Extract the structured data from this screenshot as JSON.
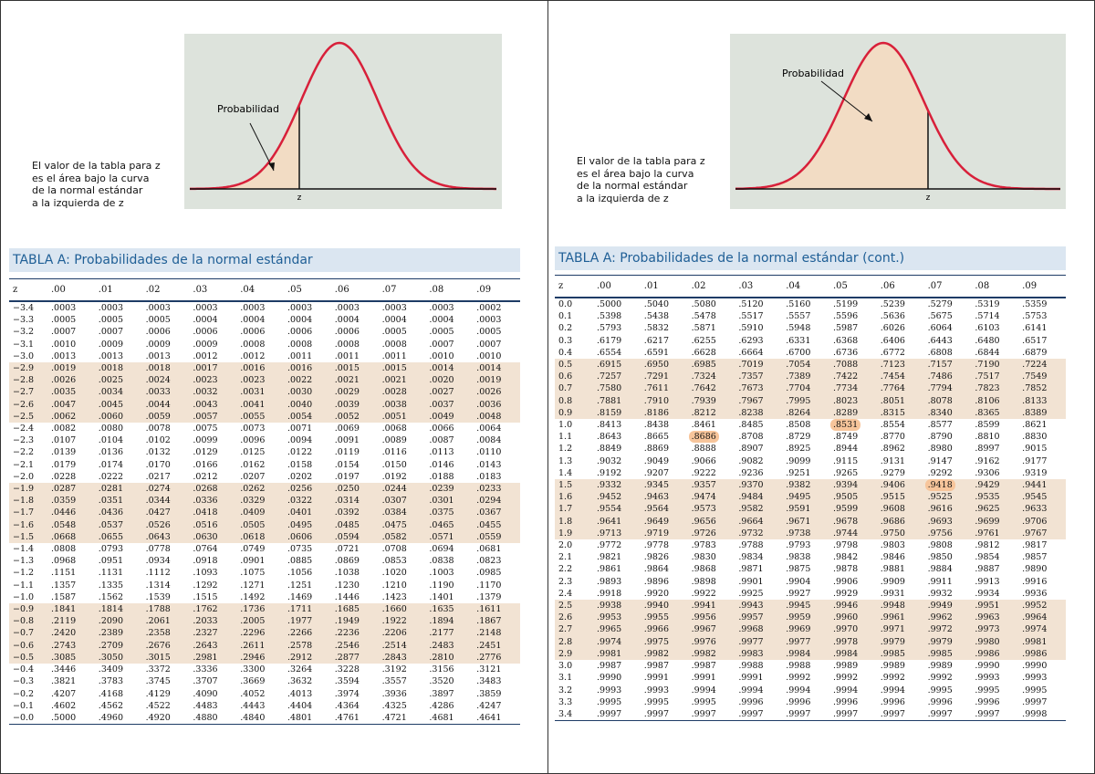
{
  "left": {
    "figure": {
      "label": "Probabilidad",
      "axis_label": "z",
      "caption": [
        "El valor de la tabla para z",
        "es el área bajo la curva",
        "de la normal estándar",
        "a la izquierda de z"
      ]
    },
    "table": {
      "title": "TABLA A:  Probabilidades de la normal estándar",
      "columns": [
        "z",
        ".00",
        ".01",
        ".02",
        ".03",
        ".04",
        ".05",
        ".06",
        ".07",
        ".08",
        ".09"
      ],
      "rows": [
        [
          "−3.4",
          ".0003",
          ".0003",
          ".0003",
          ".0003",
          ".0003",
          ".0003",
          ".0003",
          ".0003",
          ".0003",
          ".0002"
        ],
        [
          "−3.3",
          ".0005",
          ".0005",
          ".0005",
          ".0004",
          ".0004",
          ".0004",
          ".0004",
          ".0004",
          ".0004",
          ".0003"
        ],
        [
          "−3.2",
          ".0007",
          ".0007",
          ".0006",
          ".0006",
          ".0006",
          ".0006",
          ".0006",
          ".0005",
          ".0005",
          ".0005"
        ],
        [
          "−3.1",
          ".0010",
          ".0009",
          ".0009",
          ".0009",
          ".0008",
          ".0008",
          ".0008",
          ".0008",
          ".0007",
          ".0007"
        ],
        [
          "−3.0",
          ".0013",
          ".0013",
          ".0013",
          ".0012",
          ".0012",
          ".0011",
          ".0011",
          ".0011",
          ".0010",
          ".0010"
        ],
        [
          "−2.9",
          ".0019",
          ".0018",
          ".0018",
          ".0017",
          ".0016",
          ".0016",
          ".0015",
          ".0015",
          ".0014",
          ".0014"
        ],
        [
          "−2.8",
          ".0026",
          ".0025",
          ".0024",
          ".0023",
          ".0023",
          ".0022",
          ".0021",
          ".0021",
          ".0020",
          ".0019"
        ],
        [
          "−2.7",
          ".0035",
          ".0034",
          ".0033",
          ".0032",
          ".0031",
          ".0030",
          ".0029",
          ".0028",
          ".0027",
          ".0026"
        ],
        [
          "−2.6",
          ".0047",
          ".0045",
          ".0044",
          ".0043",
          ".0041",
          ".0040",
          ".0039",
          ".0038",
          ".0037",
          ".0036"
        ],
        [
          "−2.5",
          ".0062",
          ".0060",
          ".0059",
          ".0057",
          ".0055",
          ".0054",
          ".0052",
          ".0051",
          ".0049",
          ".0048"
        ],
        [
          "−2.4",
          ".0082",
          ".0080",
          ".0078",
          ".0075",
          ".0073",
          ".0071",
          ".0069",
          ".0068",
          ".0066",
          ".0064"
        ],
        [
          "−2.3",
          ".0107",
          ".0104",
          ".0102",
          ".0099",
          ".0096",
          ".0094",
          ".0091",
          ".0089",
          ".0087",
          ".0084"
        ],
        [
          "−2.2",
          ".0139",
          ".0136",
          ".0132",
          ".0129",
          ".0125",
          ".0122",
          ".0119",
          ".0116",
          ".0113",
          ".0110"
        ],
        [
          "−2.1",
          ".0179",
          ".0174",
          ".0170",
          ".0166",
          ".0162",
          ".0158",
          ".0154",
          ".0150",
          ".0146",
          ".0143"
        ],
        [
          "−2.0",
          ".0228",
          ".0222",
          ".0217",
          ".0212",
          ".0207",
          ".0202",
          ".0197",
          ".0192",
          ".0188",
          ".0183"
        ],
        [
          "−1.9",
          ".0287",
          ".0281",
          ".0274",
          ".0268",
          ".0262",
          ".0256",
          ".0250",
          ".0244",
          ".0239",
          ".0233"
        ],
        [
          "−1.8",
          ".0359",
          ".0351",
          ".0344",
          ".0336",
          ".0329",
          ".0322",
          ".0314",
          ".0307",
          ".0301",
          ".0294"
        ],
        [
          "−1.7",
          ".0446",
          ".0436",
          ".0427",
          ".0418",
          ".0409",
          ".0401",
          ".0392",
          ".0384",
          ".0375",
          ".0367"
        ],
        [
          "−1.6",
          ".0548",
          ".0537",
          ".0526",
          ".0516",
          ".0505",
          ".0495",
          ".0485",
          ".0475",
          ".0465",
          ".0455"
        ],
        [
          "−1.5",
          ".0668",
          ".0655",
          ".0643",
          ".0630",
          ".0618",
          ".0606",
          ".0594",
          ".0582",
          ".0571",
          ".0559"
        ],
        [
          "−1.4",
          ".0808",
          ".0793",
          ".0778",
          ".0764",
          ".0749",
          ".0735",
          ".0721",
          ".0708",
          ".0694",
          ".0681"
        ],
        [
          "−1.3",
          ".0968",
          ".0951",
          ".0934",
          ".0918",
          ".0901",
          ".0885",
          ".0869",
          ".0853",
          ".0838",
          ".0823"
        ],
        [
          "−1.2",
          ".1151",
          ".1131",
          ".1112",
          ".1093",
          ".1075",
          ".1056",
          ".1038",
          ".1020",
          ".1003",
          ".0985"
        ],
        [
          "−1.1",
          ".1357",
          ".1335",
          ".1314",
          ".1292",
          ".1271",
          ".1251",
          ".1230",
          ".1210",
          ".1190",
          ".1170"
        ],
        [
          "−1.0",
          ".1587",
          ".1562",
          ".1539",
          ".1515",
          ".1492",
          ".1469",
          ".1446",
          ".1423",
          ".1401",
          ".1379"
        ],
        [
          "−0.9",
          ".1841",
          ".1814",
          ".1788",
          ".1762",
          ".1736",
          ".1711",
          ".1685",
          ".1660",
          ".1635",
          ".1611"
        ],
        [
          "−0.8",
          ".2119",
          ".2090",
          ".2061",
          ".2033",
          ".2005",
          ".1977",
          ".1949",
          ".1922",
          ".1894",
          ".1867"
        ],
        [
          "−0.7",
          ".2420",
          ".2389",
          ".2358",
          ".2327",
          ".2296",
          ".2266",
          ".2236",
          ".2206",
          ".2177",
          ".2148"
        ],
        [
          "−0.6",
          ".2743",
          ".2709",
          ".2676",
          ".2643",
          ".2611",
          ".2578",
          ".2546",
          ".2514",
          ".2483",
          ".2451"
        ],
        [
          "−0.5",
          ".3085",
          ".3050",
          ".3015",
          ".2981",
          ".2946",
          ".2912",
          ".2877",
          ".2843",
          ".2810",
          ".2776"
        ],
        [
          "−0.4",
          ".3446",
          ".3409",
          ".3372",
          ".3336",
          ".3300",
          ".3264",
          ".3228",
          ".3192",
          ".3156",
          ".3121"
        ],
        [
          "−0.3",
          ".3821",
          ".3783",
          ".3745",
          ".3707",
          ".3669",
          ".3632",
          ".3594",
          ".3557",
          ".3520",
          ".3483"
        ],
        [
          "−0.2",
          ".4207",
          ".4168",
          ".4129",
          ".4090",
          ".4052",
          ".4013",
          ".3974",
          ".3936",
          ".3897",
          ".3859"
        ],
        [
          "−0.1",
          ".4602",
          ".4562",
          ".4522",
          ".4483",
          ".4443",
          ".4404",
          ".4364",
          ".4325",
          ".4286",
          ".4247"
        ],
        [
          "−0.0",
          ".5000",
          ".4960",
          ".4920",
          ".4880",
          ".4840",
          ".4801",
          ".4761",
          ".4721",
          ".4681",
          ".4641"
        ]
      ]
    }
  },
  "right": {
    "figure": {
      "label": "Probabilidad",
      "axis_label": "z",
      "caption": [
        "El valor de la tabla para z",
        "es el área bajo la curva",
        "de la normal estándar",
        "a la izquierda de z"
      ]
    },
    "table": {
      "title": "TABLA A: Probabilidades de la normal estándar (cont.)",
      "columns": [
        "z",
        ".00",
        ".01",
        ".02",
        ".03",
        ".04",
        ".05",
        ".06",
        ".07",
        ".08",
        ".09"
      ],
      "rows": [
        [
          "0.0",
          ".5000",
          ".5040",
          ".5080",
          ".5120",
          ".5160",
          ".5199",
          ".5239",
          ".5279",
          ".5319",
          ".5359"
        ],
        [
          "0.1",
          ".5398",
          ".5438",
          ".5478",
          ".5517",
          ".5557",
          ".5596",
          ".5636",
          ".5675",
          ".5714",
          ".5753"
        ],
        [
          "0.2",
          ".5793",
          ".5832",
          ".5871",
          ".5910",
          ".5948",
          ".5987",
          ".6026",
          ".6064",
          ".6103",
          ".6141"
        ],
        [
          "0.3",
          ".6179",
          ".6217",
          ".6255",
          ".6293",
          ".6331",
          ".6368",
          ".6406",
          ".6443",
          ".6480",
          ".6517"
        ],
        [
          "0.4",
          ".6554",
          ".6591",
          ".6628",
          ".6664",
          ".6700",
          ".6736",
          ".6772",
          ".6808",
          ".6844",
          ".6879"
        ],
        [
          "0.5",
          ".6915",
          ".6950",
          ".6985",
          ".7019",
          ".7054",
          ".7088",
          ".7123",
          ".7157",
          ".7190",
          ".7224"
        ],
        [
          "0.6",
          ".7257",
          ".7291",
          ".7324",
          ".7357",
          ".7389",
          ".7422",
          ".7454",
          ".7486",
          ".7517",
          ".7549"
        ],
        [
          "0.7",
          ".7580",
          ".7611",
          ".7642",
          ".7673",
          ".7704",
          ".7734",
          ".7764",
          ".7794",
          ".7823",
          ".7852"
        ],
        [
          "0.8",
          ".7881",
          ".7910",
          ".7939",
          ".7967",
          ".7995",
          ".8023",
          ".8051",
          ".8078",
          ".8106",
          ".8133"
        ],
        [
          "0.9",
          ".8159",
          ".8186",
          ".8212",
          ".8238",
          ".8264",
          ".8289",
          ".8315",
          ".8340",
          ".8365",
          ".8389"
        ],
        [
          "1.0",
          ".8413",
          ".8438",
          ".8461",
          ".8485",
          ".8508",
          ".8531",
          ".8554",
          ".8577",
          ".8599",
          ".8621"
        ],
        [
          "1.1",
          ".8643",
          ".8665",
          ".8686",
          ".8708",
          ".8729",
          ".8749",
          ".8770",
          ".8790",
          ".8810",
          ".8830"
        ],
        [
          "1.2",
          ".8849",
          ".8869",
          ".8888",
          ".8907",
          ".8925",
          ".8944",
          ".8962",
          ".8980",
          ".8997",
          ".9015"
        ],
        [
          "1.3",
          ".9032",
          ".9049",
          ".9066",
          ".9082",
          ".9099",
          ".9115",
          ".9131",
          ".9147",
          ".9162",
          ".9177"
        ],
        [
          "1.4",
          ".9192",
          ".9207",
          ".9222",
          ".9236",
          ".9251",
          ".9265",
          ".9279",
          ".9292",
          ".9306",
          ".9319"
        ],
        [
          "1.5",
          ".9332",
          ".9345",
          ".9357",
          ".9370",
          ".9382",
          ".9394",
          ".9406",
          ".9418",
          ".9429",
          ".9441"
        ],
        [
          "1.6",
          ".9452",
          ".9463",
          ".9474",
          ".9484",
          ".9495",
          ".9505",
          ".9515",
          ".9525",
          ".9535",
          ".9545"
        ],
        [
          "1.7",
          ".9554",
          ".9564",
          ".9573",
          ".9582",
          ".9591",
          ".9599",
          ".9608",
          ".9616",
          ".9625",
          ".9633"
        ],
        [
          "1.8",
          ".9641",
          ".9649",
          ".9656",
          ".9664",
          ".9671",
          ".9678",
          ".9686",
          ".9693",
          ".9699",
          ".9706"
        ],
        [
          "1.9",
          ".9713",
          ".9719",
          ".9726",
          ".9732",
          ".9738",
          ".9744",
          ".9750",
          ".9756",
          ".9761",
          ".9767"
        ],
        [
          "2.0",
          ".9772",
          ".9778",
          ".9783",
          ".9788",
          ".9793",
          ".9798",
          ".9803",
          ".9808",
          ".9812",
          ".9817"
        ],
        [
          "2.1",
          ".9821",
          ".9826",
          ".9830",
          ".9834",
          ".9838",
          ".9842",
          ".9846",
          ".9850",
          ".9854",
          ".9857"
        ],
        [
          "2.2",
          ".9861",
          ".9864",
          ".9868",
          ".9871",
          ".9875",
          ".9878",
          ".9881",
          ".9884",
          ".9887",
          ".9890"
        ],
        [
          "2.3",
          ".9893",
          ".9896",
          ".9898",
          ".9901",
          ".9904",
          ".9906",
          ".9909",
          ".9911",
          ".9913",
          ".9916"
        ],
        [
          "2.4",
          ".9918",
          ".9920",
          ".9922",
          ".9925",
          ".9927",
          ".9929",
          ".9931",
          ".9932",
          ".9934",
          ".9936"
        ],
        [
          "2.5",
          ".9938",
          ".9940",
          ".9941",
          ".9943",
          ".9945",
          ".9946",
          ".9948",
          ".9949",
          ".9951",
          ".9952"
        ],
        [
          "2.6",
          ".9953",
          ".9955",
          ".9956",
          ".9957",
          ".9959",
          ".9960",
          ".9961",
          ".9962",
          ".9963",
          ".9964"
        ],
        [
          "2.7",
          ".9965",
          ".9966",
          ".9967",
          ".9968",
          ".9969",
          ".9970",
          ".9971",
          ".9972",
          ".9973",
          ".9974"
        ],
        [
          "2.8",
          ".9974",
          ".9975",
          ".9976",
          ".9977",
          ".9977",
          ".9978",
          ".9979",
          ".9979",
          ".9980",
          ".9981"
        ],
        [
          "2.9",
          ".9981",
          ".9982",
          ".9982",
          ".9983",
          ".9984",
          ".9984",
          ".9985",
          ".9985",
          ".9986",
          ".9986"
        ],
        [
          "3.0",
          ".9987",
          ".9987",
          ".9987",
          ".9988",
          ".9988",
          ".9989",
          ".9989",
          ".9989",
          ".9990",
          ".9990"
        ],
        [
          "3.1",
          ".9990",
          ".9991",
          ".9991",
          ".9991",
          ".9992",
          ".9992",
          ".9992",
          ".9992",
          ".9993",
          ".9993"
        ],
        [
          "3.2",
          ".9993",
          ".9993",
          ".9994",
          ".9994",
          ".9994",
          ".9994",
          ".9994",
          ".9995",
          ".9995",
          ".9995"
        ],
        [
          "3.3",
          ".9995",
          ".9995",
          ".9995",
          ".9996",
          ".9996",
          ".9996",
          ".9996",
          ".9996",
          ".9996",
          ".9997"
        ],
        [
          "3.4",
          ".9997",
          ".9997",
          ".9997",
          ".9997",
          ".9997",
          ".9997",
          ".9997",
          ".9997",
          ".9997",
          ".9998"
        ]
      ]
    }
  }
}
